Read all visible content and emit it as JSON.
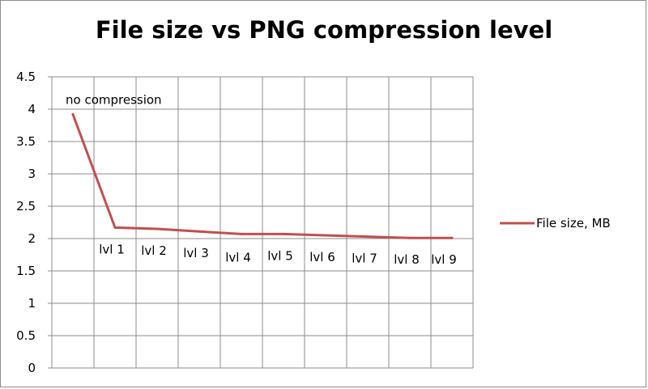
{
  "chart_data": {
    "type": "line",
    "title": "File size vs PNG compression level",
    "categories": [
      "no compression",
      "lvl 1",
      "lvl 2",
      "lvl 3",
      "lvl 4",
      "lvl 5",
      "lvl 6",
      "lvl 7",
      "lvl 8",
      "lvl 9"
    ],
    "series": [
      {
        "name": "File size, MB",
        "color": "#c0504d",
        "values": [
          3.92,
          2.17,
          2.15,
          2.11,
          2.07,
          2.07,
          2.05,
          2.03,
          2.01,
          2.01
        ]
      }
    ],
    "ylim": [
      0,
      4.5
    ],
    "yticks": [
      "0",
      "0.5",
      "1",
      "1.5",
      "2",
      "2.5",
      "3",
      "3.5",
      "4",
      "4.5"
    ],
    "grid": true,
    "legend": "right"
  }
}
